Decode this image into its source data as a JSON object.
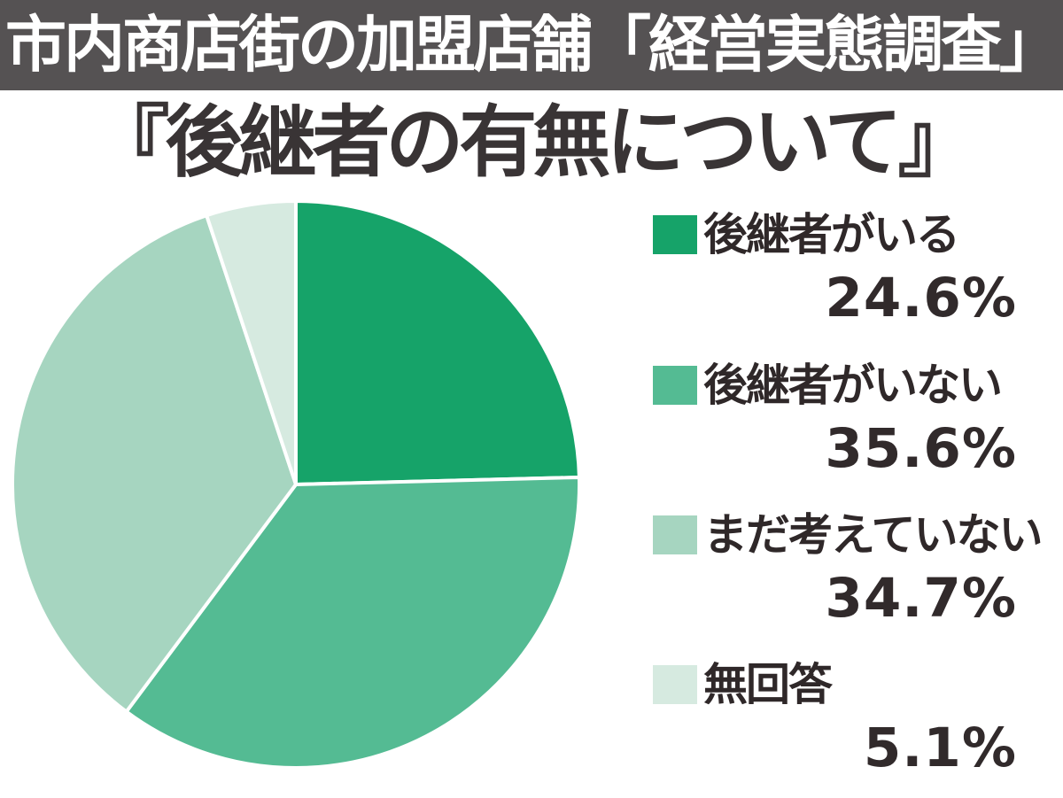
{
  "header": {
    "banner": "市内商店街の加盟店舗「経営実態調査」"
  },
  "title": "『後継者の有無について』",
  "colors": {
    "banner_bg": "#555253",
    "banner_text": "#ffffff",
    "title_text": "#393435",
    "legend_text": "#2f2829",
    "slice_stroke": "#ffffff"
  },
  "chart_data": {
    "type": "pie",
    "title": "後継者の有無について",
    "start_angle_deg": 0,
    "direction": "clockwise",
    "legend_position": "right",
    "slices": [
      {
        "label": "後継者がいる",
        "value": 24.6,
        "pct_label": "24.6%",
        "color": "#16a369"
      },
      {
        "label": "後継者がいない",
        "value": 35.6,
        "pct_label": "35.6%",
        "color": "#54bb93"
      },
      {
        "label": "まだ考えていない",
        "value": 34.7,
        "pct_label": "34.7%",
        "color": "#a6d5c0"
      },
      {
        "label": "無回答",
        "value": 5.1,
        "pct_label": "5.1%",
        "color": "#d6eae0"
      }
    ]
  }
}
